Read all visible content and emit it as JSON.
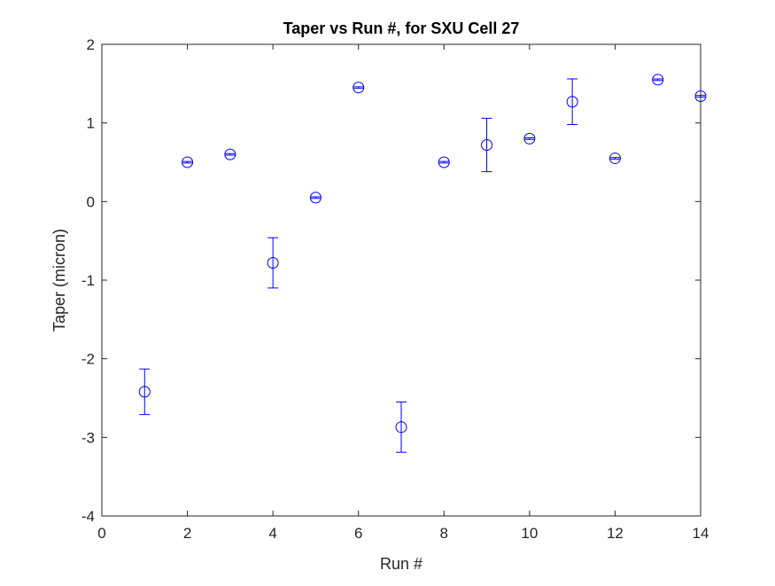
{
  "chart_data": {
    "type": "scatter",
    "title": "Taper vs Run #, for SXU Cell 27",
    "xlabel": "Run #",
    "ylabel": "Taper (micron)",
    "xlim": [
      0,
      14
    ],
    "ylim": [
      -4,
      2
    ],
    "xticks": [
      0,
      2,
      4,
      6,
      8,
      10,
      12,
      14
    ],
    "yticks": [
      -4,
      -3,
      -2,
      -1,
      0,
      1,
      2
    ],
    "grid": false,
    "marker": "circle",
    "color": "#0000ff",
    "x": [
      1,
      2,
      3,
      4,
      5,
      6,
      7,
      8,
      9,
      10,
      11,
      12,
      13,
      14
    ],
    "y": [
      -2.42,
      0.5,
      0.6,
      -0.78,
      0.05,
      1.45,
      -2.87,
      0.5,
      0.72,
      0.8,
      1.27,
      0.55,
      1.55,
      1.34
    ],
    "error": [
      0.29,
      0.01,
      0.01,
      0.32,
      0.01,
      0.01,
      0.32,
      0.01,
      0.34,
      0.01,
      0.29,
      0.01,
      0.01,
      0.01
    ]
  }
}
